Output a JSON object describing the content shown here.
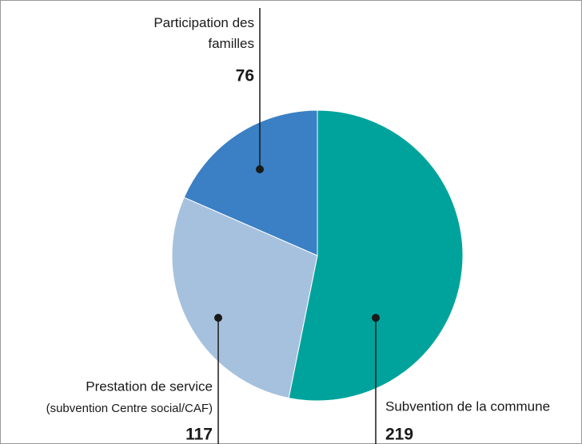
{
  "chart_data": {
    "type": "pie",
    "categories": [
      "Subvention de la commune",
      "Prestation de service",
      "Participation des familles"
    ],
    "values": [
      219,
      117,
      76
    ],
    "colors": [
      "#00a39b",
      "#a6c1de",
      "#3b7fc4"
    ],
    "annotations": [
      "(subvention Centre social/CAF)"
    ]
  }
}
